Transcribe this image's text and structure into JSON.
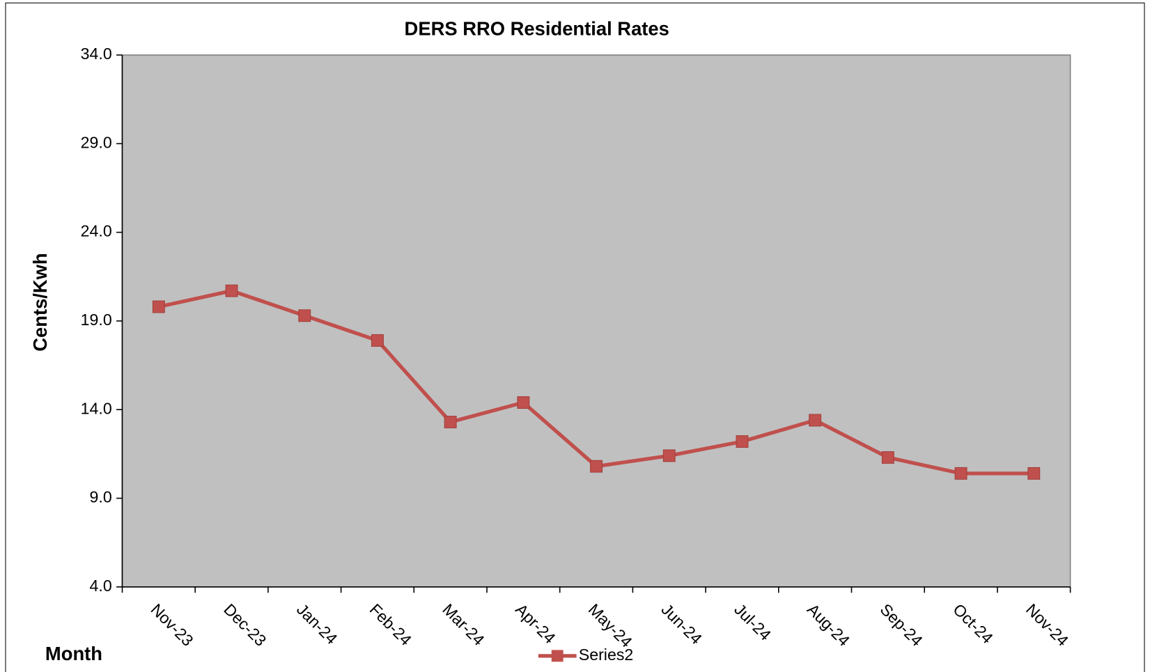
{
  "chart_data": {
    "type": "line",
    "title": "DERS RRO Residential Rates",
    "x_label": "Month",
    "y_label": "Cents/Kwh",
    "categories": [
      "Nov-23",
      "Dec-23",
      "Jan-24",
      "Feb-24",
      "Mar-24",
      "Apr-24",
      "May-24",
      "Jun-24",
      "Jul-24",
      "Aug-24",
      "Sep-24",
      "Oct-24",
      "Nov-24"
    ],
    "series": [
      {
        "name": "Series2",
        "color": "#c0504d",
        "values": [
          19.8,
          20.7,
          19.3,
          17.9,
          13.3,
          14.4,
          10.8,
          11.4,
          12.2,
          13.4,
          11.3,
          10.4,
          10.4
        ]
      }
    ],
    "ylim": [
      4,
      34
    ],
    "yticks": [
      {
        "value": 4,
        "label": "4.0"
      },
      {
        "value": 9,
        "label": "9.0"
      },
      {
        "value": 14,
        "label": "14.0"
      },
      {
        "value": 19,
        "label": "19.0"
      },
      {
        "value": 24,
        "label": "24.0"
      },
      {
        "value": 29,
        "label": "29.0"
      },
      {
        "value": 34,
        "label": "34.0"
      }
    ],
    "plot_background": "#c0c0c0",
    "legend": "bottom"
  }
}
